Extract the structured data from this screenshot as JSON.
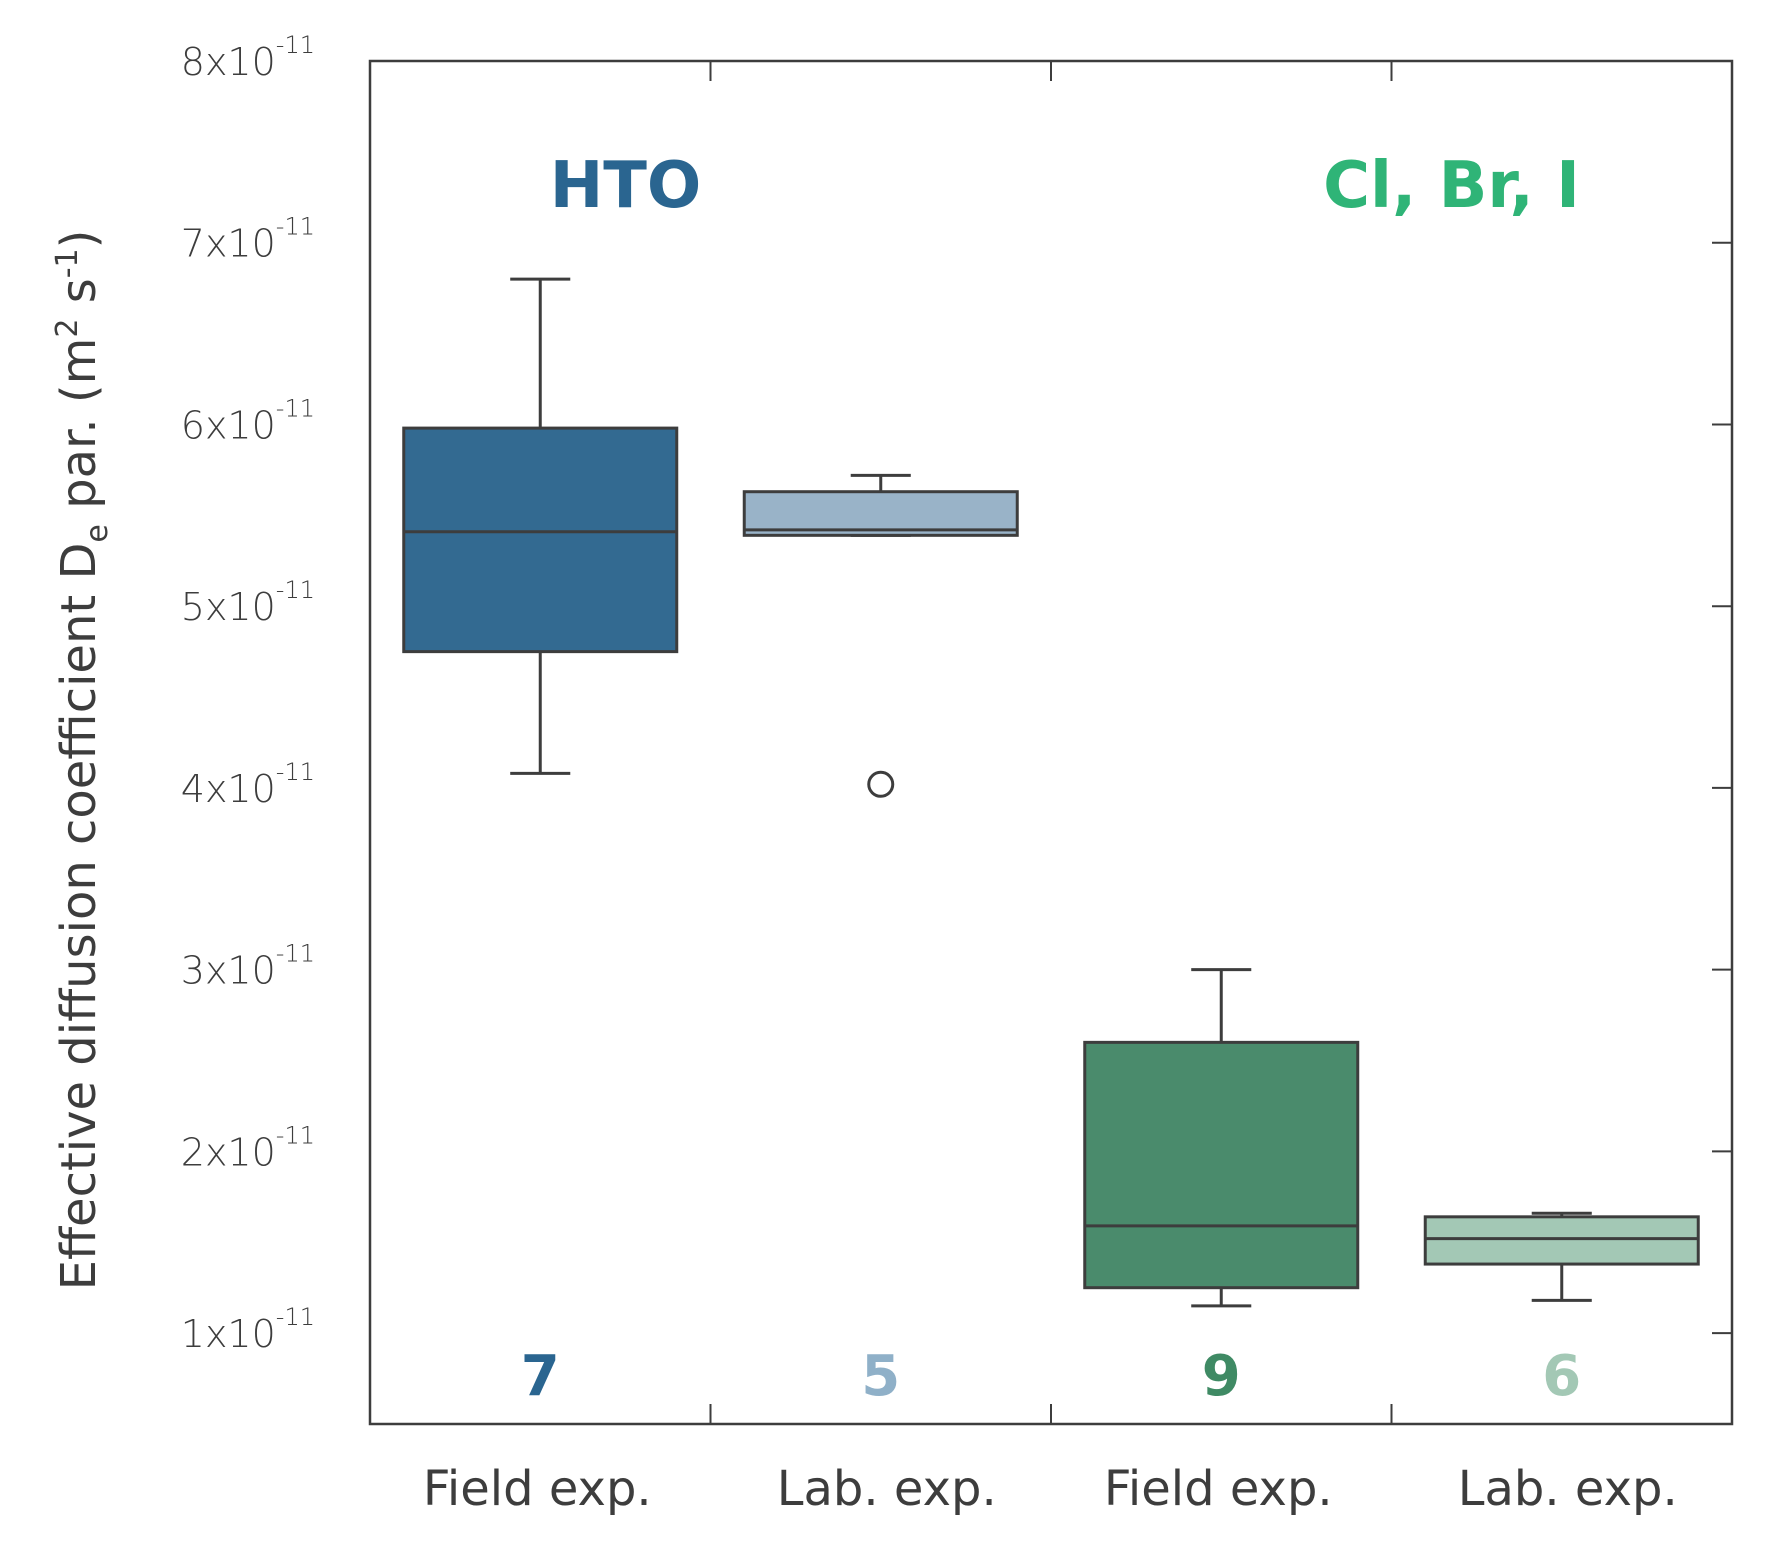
{
  "chart_data": {
    "type": "box",
    "title": "",
    "xlabel": "",
    "ylabel": "Effective diffusion coefficient D",
    "ylabel_sub": "e",
    "ylabel_rest": " par. (m",
    "ylabel_sup1": "2",
    "ylabel_mid": " s",
    "ylabel_sup2": "-1",
    "ylabel_end": ")",
    "ylim": [
      0.5,
      8
    ],
    "y_unit_exponent": "-11",
    "yticks": [
      1,
      2,
      3,
      4,
      5,
      6,
      7,
      8
    ],
    "ytick_labels": [
      "1x10",
      "2x10",
      "3x10",
      "4x10",
      "5x10",
      "6x10",
      "7x10",
      "8x10"
    ],
    "categories": [
      "Field exp.",
      "Lab. exp.",
      "Field exp.",
      "Lab. exp."
    ],
    "groups": [
      {
        "label": "HTO",
        "color": "#2a6590"
      },
      {
        "label": "Cl, Br, I",
        "color": "#2fb477"
      }
    ],
    "boxes": [
      {
        "category": "Field exp.",
        "group": "HTO",
        "n": "7",
        "whisker_low": 4.08,
        "q1": 4.75,
        "median": 5.41,
        "q3": 5.98,
        "whisker_high": 6.8,
        "outliers": [],
        "fill": "#336a91",
        "count_color": "#2a6590"
      },
      {
        "category": "Lab. exp.",
        "group": "HTO",
        "n": "5",
        "whisker_low": 5.39,
        "q1": 5.39,
        "median": 5.42,
        "q3": 5.63,
        "whisker_high": 5.72,
        "outliers": [
          4.02
        ],
        "fill": "#99b3c8",
        "count_color": "#8fb0c8"
      },
      {
        "category": "Field exp.",
        "group": "Cl, Br, I",
        "n": "9",
        "whisker_low": 1.15,
        "q1": 1.25,
        "median": 1.59,
        "q3": 2.6,
        "whisker_high": 3.0,
        "outliers": [],
        "fill": "#4a8b6c",
        "count_color": "#3f8a64"
      },
      {
        "category": "Lab. exp.",
        "group": "Cl, Br, I",
        "n": "6",
        "whisker_low": 1.18,
        "q1": 1.38,
        "median": 1.52,
        "q3": 1.64,
        "whisker_high": 1.66,
        "outliers": [],
        "fill": "#a3c8b5",
        "count_color": "#a3c8b5"
      }
    ],
    "grid": false,
    "legend": "none"
  }
}
